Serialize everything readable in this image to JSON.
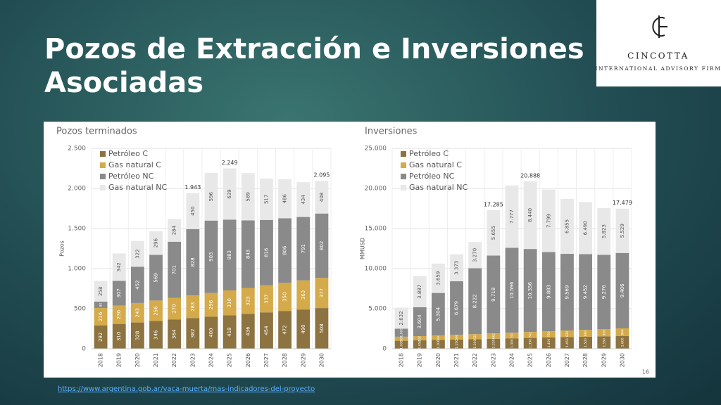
{
  "title": "Pozos de Extracción e Inversiones Asociadas",
  "logo": {
    "name": "CINCOTTA",
    "tagline": "INTERNATIONAL ADVISORY FIRM"
  },
  "page_number": "16",
  "source_link": "https://www.argentina.gob.ar/vaca-muerta/mas-indicadores-del-proyecto",
  "chart_data": [
    {
      "type": "stacked_bar",
      "title": "Pozos terminados",
      "y_label": "Pozos",
      "categories": [
        "2018",
        "2019",
        "2020",
        "2021",
        "2022",
        "2023",
        "2024",
        "2025",
        "2026",
        "2027",
        "2028",
        "2029",
        "2030"
      ],
      "series": [
        {
          "name": "Petróleo C",
          "color": "#8c7340",
          "values": [
            292,
            310,
            328,
            346,
            364,
            382,
            400,
            418,
            436,
            454,
            472,
            490,
            508
          ]
        },
        {
          "name": "Gas natural C",
          "color": "#d4aa4a",
          "values": [
            216,
            230,
            243,
            256,
            270,
            283,
            296,
            310,
            323,
            337,
            350,
            363,
            377
          ]
        },
        {
          "name": "Petróleo NC",
          "color": "#8a8a8a",
          "values": [
            80,
            307,
            452,
            569,
            701,
            828,
            903,
            883,
            843,
            816,
            806,
            791,
            802
          ]
        },
        {
          "name": "Gas natural NC",
          "color": "#e8e8e8",
          "values": [
            258,
            342,
            322,
            296,
            284,
            450,
            596,
            639,
            589,
            517,
            486,
            434,
            408
          ]
        }
      ],
      "ylim": [
        0,
        2500
      ],
      "yticks": [
        0,
        500,
        {
          "value": 1000,
          "label": "1.000"
        },
        {
          "value": 1500,
          "label": "1.500"
        },
        {
          "value": 2000,
          "label": "2.000"
        },
        {
          "value": 2500,
          "label": "2.500"
        }
      ],
      "grid": true,
      "annotations": [
        {
          "category": "2023",
          "text": "1.943"
        },
        {
          "category": "2025",
          "text": "2.249"
        },
        {
          "category": "2030",
          "text": "2.095"
        }
      ]
    },
    {
      "type": "stacked_bar",
      "title": "Inversiones",
      "y_label": "MMUSD",
      "categories": [
        "2018",
        "2019",
        "2020",
        "2021",
        "2022",
        "2023",
        "2024",
        "2025",
        "2026",
        "2027",
        "2028",
        "2029",
        "2030"
      ],
      "series": [
        {
          "name": "Petróleo C",
          "color": "#8c7340",
          "values": [
            1000,
            1050,
            1100,
            1150,
            1200,
            1250,
            1300,
            1350,
            1400,
            1450,
            1500,
            1550,
            1600
          ],
          "value_labels": [
            "1.000",
            "1.050",
            "1.100",
            "1.150",
            "1.200",
            "1.250",
            "1.300",
            "1.350",
            "1.400",
            "1.450",
            "1.500",
            "1.550",
            "1.600"
          ]
        },
        {
          "name": "Gas natural C",
          "color": "#d4aa4a",
          "values": [
            500,
            530,
            560,
            590,
            620,
            662,
            700,
            742,
            780,
            820,
            860,
            900,
            944
          ]
        },
        {
          "name": "Petróleo NC",
          "color": "#8a8a8a",
          "values": [
            1000,
            3604,
            5304,
            6679,
            8222,
            9718,
            10596,
            10356,
            9883,
            9569,
            9452,
            9276,
            9406
          ],
          "value_labels": [
            "1.000",
            "3.604",
            "5.304",
            "6.679",
            "8.222",
            "9.718",
            "10.596",
            "10.356",
            "9.883",
            "9.569",
            "9.452",
            "9.276",
            "9.406"
          ]
        },
        {
          "name": "Gas natural NC",
          "color": "#e8e8e8",
          "values": [
            2632,
            3887,
            3659,
            3373,
            3270,
            5655,
            7777,
            8440,
            7799,
            6855,
            6490,
            5823,
            5529
          ],
          "value_labels": [
            "2.632",
            "3.887",
            "3.659",
            "3.373",
            "3.270",
            "5.655",
            "7.777",
            "8.440",
            "7.799",
            "6.855",
            "6.490",
            "5.823",
            "5.529"
          ]
        }
      ],
      "ylim": [
        0,
        25000
      ],
      "yticks": [
        0,
        {
          "value": 5000,
          "label": "5.000"
        },
        {
          "value": 10000,
          "label": "10.000"
        },
        {
          "value": 15000,
          "label": "15.000"
        },
        {
          "value": 20000,
          "label": "20.000"
        },
        {
          "value": 25000,
          "label": "25.000"
        }
      ],
      "grid": true,
      "annotations": [
        {
          "category": "2023",
          "text": "17.285"
        },
        {
          "category": "2025",
          "text": "20.888"
        },
        {
          "category": "2030",
          "text": "17.479"
        }
      ]
    }
  ]
}
